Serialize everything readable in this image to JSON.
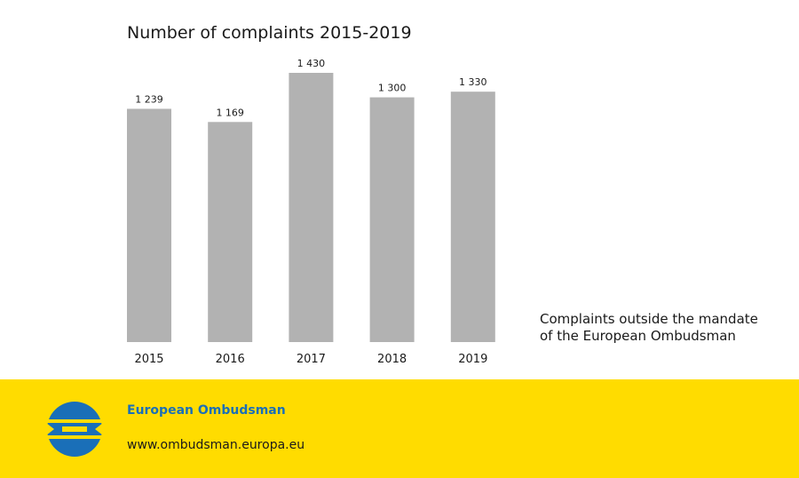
{
  "chart_data": {
    "type": "bar",
    "title": "Number of complaints 2015-2019",
    "categories": [
      "2015",
      "2016",
      "2017",
      "2018",
      "2019"
    ],
    "values": [
      1239,
      1169,
      1430,
      1300,
      1330
    ],
    "value_labels": [
      "1 239",
      "1 169",
      "1 430",
      "1 300",
      "1 330"
    ],
    "ylim": [
      0,
      1430
    ],
    "grid": false,
    "bar_color": "#b2b2b2"
  },
  "legend": {
    "line1": "Complaints outside the mandate",
    "line2": "of the European Ombudsman"
  },
  "footer": {
    "organization": "European Ombudsman",
    "url": "www.ombudsman.europa.eu",
    "background_color": "#ffdc00",
    "brand_color": "#1a6fb8"
  }
}
